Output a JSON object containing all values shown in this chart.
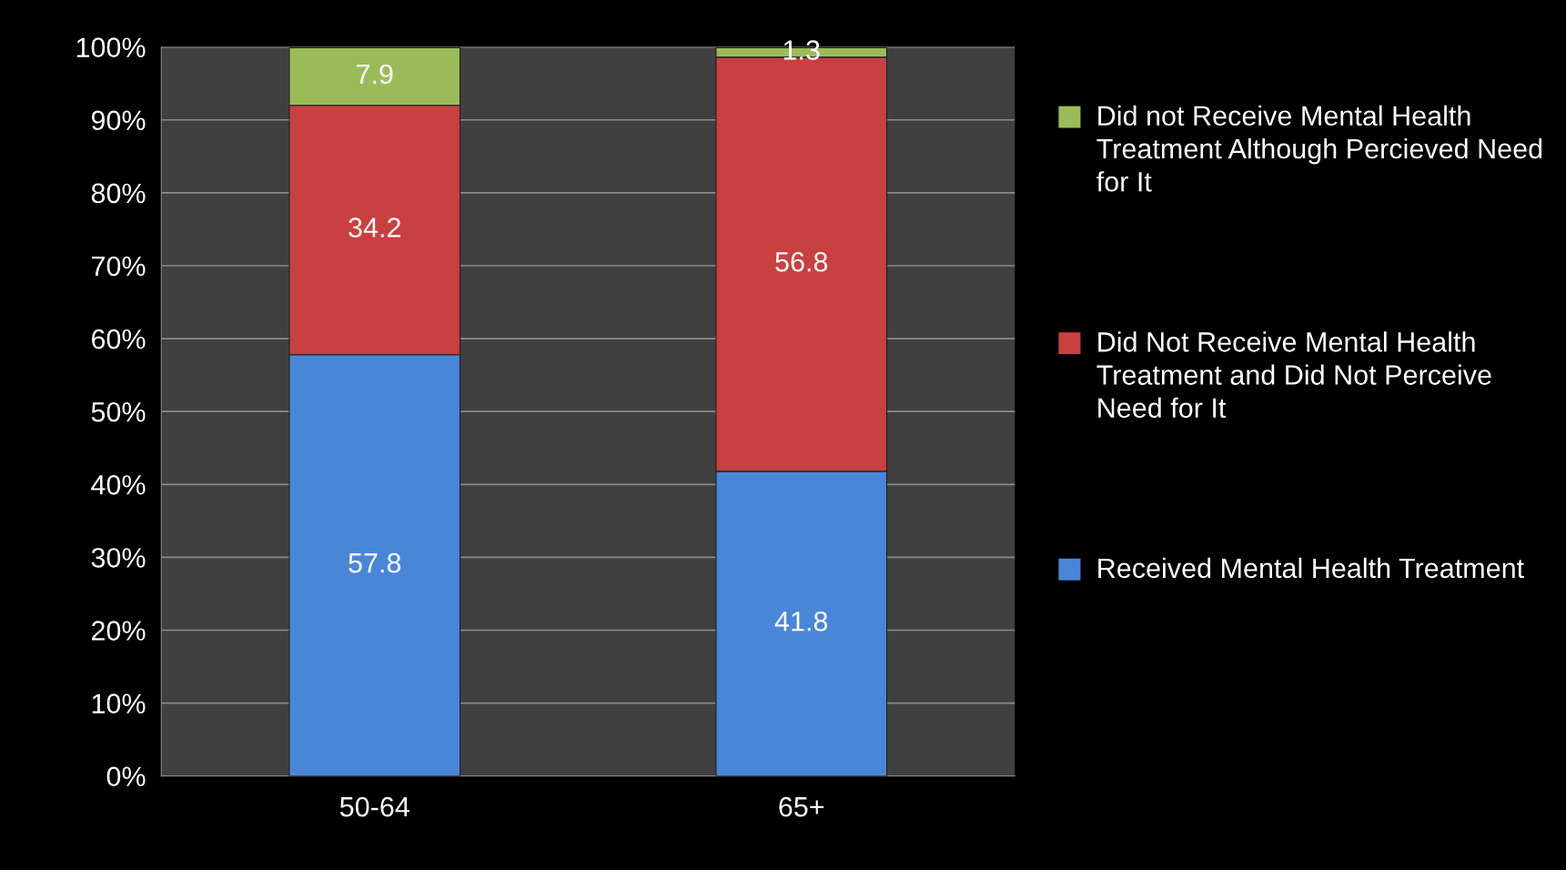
{
  "chart_data": {
    "type": "bar",
    "stacked": true,
    "categories": [
      "50-64",
      "65+"
    ],
    "series": [
      {
        "name": "Received Mental Health Treatment",
        "color": "#4a86d8",
        "values": [
          57.8,
          41.8
        ]
      },
      {
        "name": "Did Not Receive Mental Health Treatment and Did Not Perceive Need for It",
        "color": "#c8403f",
        "values": [
          34.2,
          56.8
        ]
      },
      {
        "name": "Did not Receive Mental Health Treatment Although Percieved Need for It",
        "color": "#9bbb59",
        "values": [
          7.9,
          1.3
        ]
      }
    ],
    "ylim": [
      0,
      100
    ],
    "yticks": [
      {
        "value": 0,
        "label": "0%"
      },
      {
        "value": 10,
        "label": "10%"
      },
      {
        "value": 20,
        "label": "20%"
      },
      {
        "value": 30,
        "label": "30%"
      },
      {
        "value": 40,
        "label": "40%"
      },
      {
        "value": 50,
        "label": "50%"
      },
      {
        "value": 60,
        "label": "60%"
      },
      {
        "value": 70,
        "label": "70%"
      },
      {
        "value": 80,
        "label": "80%"
      },
      {
        "value": 90,
        "label": "90%"
      },
      {
        "value": 100,
        "label": "100%"
      }
    ],
    "grid": "y",
    "legend": "right",
    "data_labels": true
  }
}
